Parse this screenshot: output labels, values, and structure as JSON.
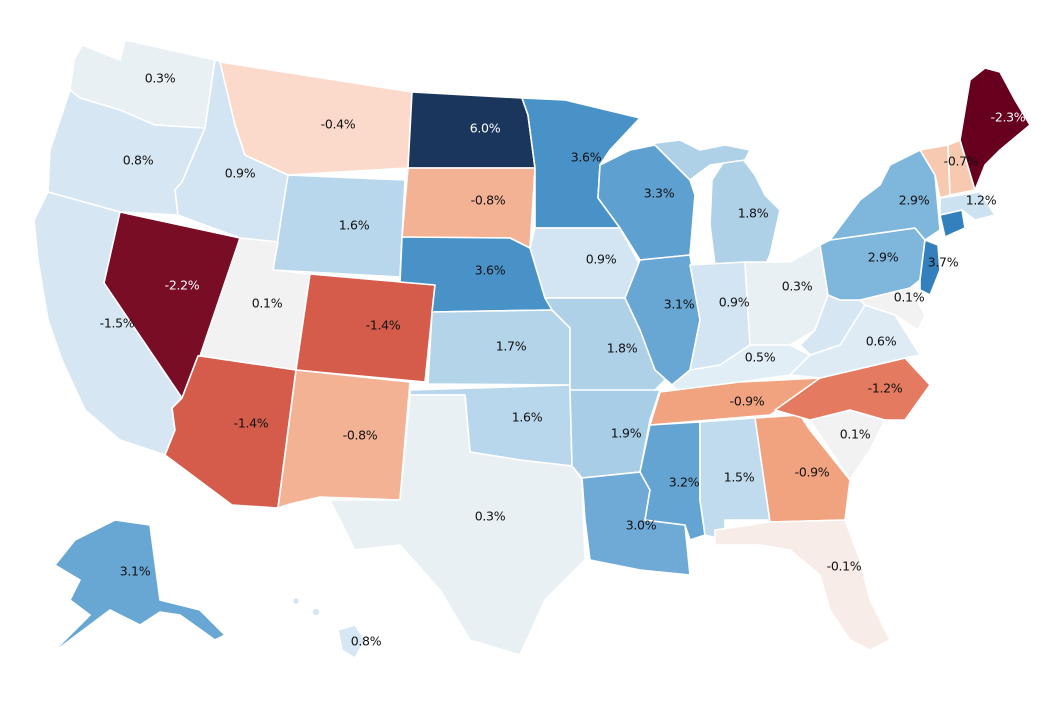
{
  "map": {
    "colors": {
      "c_-2.3": "#67001f",
      "c_-2.2": "#7a0d26",
      "c_-1.5": "#cb4440",
      "c_-1.4": "#d55c4a",
      "c_-1.2": "#e47a5f",
      "c_-0.9": "#f1a27f",
      "c_-0.8": "#f4b295",
      "c_-0.7": "#f8c9b1",
      "c_-0.4": "#fbdacb",
      "c_-0.1": "#f7ece7",
      "c_0.1": "#f2f2f2",
      "c_0.3": "#e9f0f4",
      "c_0.5": "#e2eef6",
      "c_0.6": "#deebf5",
      "c_0.8": "#d6e7f3",
      "c_0.9": "#d3e5f2",
      "c_1.2": "#cde2f0",
      "c_1.5": "#c0dbee",
      "c_1.6": "#b9d7ec",
      "c_1.7": "#b4d4ea",
      "c_1.8": "#aed1e8",
      "c_1.9": "#a8cde6",
      "c_2.9": "#7fb6dc",
      "c_3.0": "#6faad6",
      "c_3.1": "#68a7d4",
      "c_3.2": "#64a4d3",
      "c_3.3": "#5ea1d1",
      "c_3.6": "#4992c8",
      "c_3.7": "#3480bc",
      "c_6.0": "#1b365d",
      "label_dark": "#111111",
      "label_light": "#ffffff"
    },
    "states": [
      {
        "id": "WA",
        "label": "0.3%",
        "value": 0.3
      },
      {
        "id": "OR",
        "label": "0.8%",
        "value": 0.8
      },
      {
        "id": "CA",
        "label": "-1.5%",
        "value": -1.5
      },
      {
        "id": "NV",
        "label": "-2.2%",
        "value": -2.2
      },
      {
        "id": "ID",
        "label": "0.9%",
        "value": 0.9
      },
      {
        "id": "MT",
        "label": "-0.4%",
        "value": -0.4
      },
      {
        "id": "WY",
        "label": "1.6%",
        "value": 1.6
      },
      {
        "id": "UT",
        "label": "0.1%",
        "value": 0.1
      },
      {
        "id": "AZ",
        "label": "-1.4%",
        "value": -1.4
      },
      {
        "id": "CO",
        "label": "-1.4%",
        "value": -1.4
      },
      {
        "id": "NM",
        "label": "-0.8%",
        "value": -0.8
      },
      {
        "id": "ND",
        "label": "6.0%",
        "value": 6.0
      },
      {
        "id": "SD",
        "label": "-0.8%",
        "value": -0.8
      },
      {
        "id": "NE",
        "label": "3.6%",
        "value": 3.6
      },
      {
        "id": "KS",
        "label": "1.7%",
        "value": 1.7
      },
      {
        "id": "OK",
        "label": "1.6%",
        "value": 1.6
      },
      {
        "id": "TX",
        "label": "0.3%",
        "value": 0.3
      },
      {
        "id": "MN",
        "label": "3.6%",
        "value": 3.6
      },
      {
        "id": "IA",
        "label": "0.9%",
        "value": 0.9
      },
      {
        "id": "MO",
        "label": "1.8%",
        "value": 1.8
      },
      {
        "id": "AR",
        "label": "1.9%",
        "value": 1.9
      },
      {
        "id": "LA",
        "label": "3.0%",
        "value": 3.0
      },
      {
        "id": "WI",
        "label": "3.3%",
        "value": 3.3
      },
      {
        "id": "IL",
        "label": "3.1%",
        "value": 3.1
      },
      {
        "id": "MI",
        "label": "1.8%",
        "value": 1.8
      },
      {
        "id": "IN",
        "label": "0.9%",
        "value": 0.9
      },
      {
        "id": "OH",
        "label": "0.3%",
        "value": 0.3
      },
      {
        "id": "KY",
        "label": "0.5%",
        "value": 0.5
      },
      {
        "id": "TN",
        "label": "-0.9%",
        "value": -0.9
      },
      {
        "id": "MS",
        "label": "3.2%",
        "value": 3.2
      },
      {
        "id": "AL",
        "label": "1.5%",
        "value": 1.5
      },
      {
        "id": "GA",
        "label": "-0.9%",
        "value": -0.9
      },
      {
        "id": "FL",
        "label": "-0.1%",
        "value": -0.1
      },
      {
        "id": "SC",
        "label": "0.1%",
        "value": 0.1
      },
      {
        "id": "NC",
        "label": "-1.2%",
        "value": -1.2
      },
      {
        "id": "VA",
        "label": "0.6%",
        "value": 0.6
      },
      {
        "id": "WV",
        "label": "",
        "value": null
      },
      {
        "id": "MD",
        "label": "0.1%",
        "value": 0.1
      },
      {
        "id": "PA",
        "label": "2.9%",
        "value": 2.9
      },
      {
        "id": "NY",
        "label": "2.9%",
        "value": 2.9
      },
      {
        "id": "NJ",
        "label": "3.7%",
        "value": 3.7
      },
      {
        "id": "CT",
        "label": "",
        "value": null
      },
      {
        "id": "MA",
        "label": "1.2%",
        "value": 1.2
      },
      {
        "id": "VT",
        "label": "-0.7%",
        "value": -0.7
      },
      {
        "id": "NH",
        "label": "",
        "value": null
      },
      {
        "id": "ME",
        "label": "-2.3%",
        "value": -2.3
      },
      {
        "id": "AK",
        "label": "3.1%",
        "value": 3.1
      },
      {
        "id": "HI",
        "label": "0.8%",
        "value": 0.8
      }
    ]
  }
}
